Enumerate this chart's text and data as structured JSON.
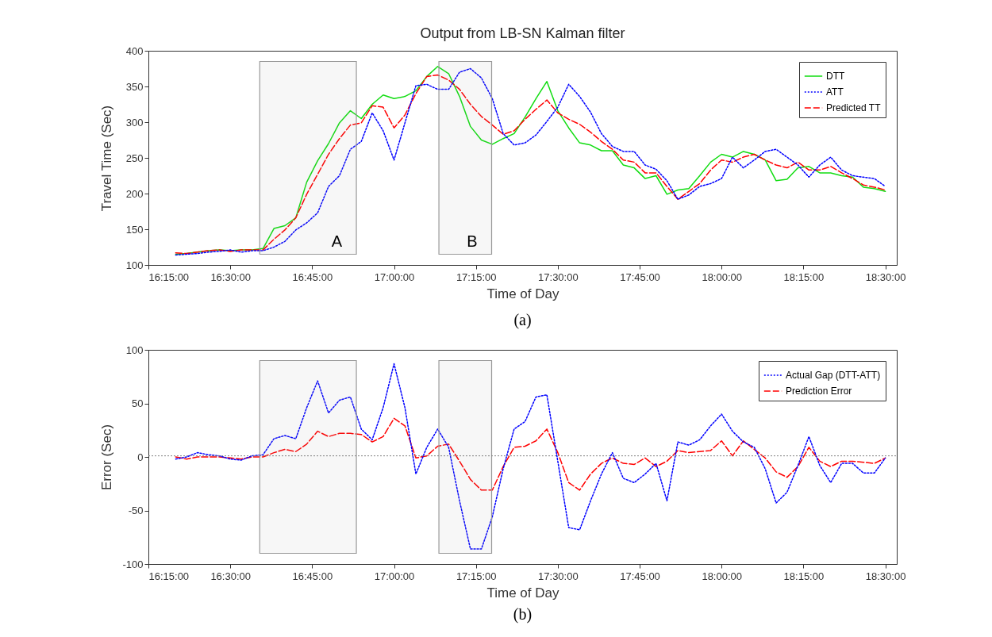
{
  "chart_data": [
    {
      "type": "line",
      "title": "Output from LB-SN Kalman filter",
      "xlabel": "Time of Day",
      "ylabel": "Travel Time (Sec)",
      "annotations": [
        "(a)"
      ],
      "xlim": [
        16.25,
        18.535
      ],
      "ylim": [
        100,
        400
      ],
      "xticks": [
        {
          "value": 16.25,
          "label": "16:15:00"
        },
        {
          "value": 16.5,
          "label": "16:30:00"
        },
        {
          "value": 16.75,
          "label": "16:45:00"
        },
        {
          "value": 17,
          "label": "17:00:00"
        },
        {
          "value": 17.25,
          "label": "17:15:00"
        },
        {
          "value": 17.5,
          "label": "17:30:00"
        },
        {
          "value": 17.75,
          "label": "17:45:00"
        },
        {
          "value": 18,
          "label": "18:00:00"
        },
        {
          "value": 18.25,
          "label": "18:15:00"
        },
        {
          "value": 18.5,
          "label": "18:30:00"
        }
      ],
      "yticks": [
        100,
        150,
        200,
        250,
        300,
        350,
        400
      ],
      "x": [
        16.3333,
        16.3667,
        16.4,
        16.4333,
        16.4667,
        16.5,
        16.5333,
        16.5667,
        16.6,
        16.6333,
        16.6667,
        16.7,
        16.7333,
        16.7667,
        16.8,
        16.8333,
        16.8667,
        16.9,
        16.9333,
        16.9667,
        17,
        17.0333,
        17.0667,
        17.1,
        17.1333,
        17.1667,
        17.2,
        17.2333,
        17.2667,
        17.3,
        17.3333,
        17.3667,
        17.4,
        17.4333,
        17.4667,
        17.5,
        17.5333,
        17.5667,
        17.6,
        17.6333,
        17.6667,
        17.7,
        17.7333,
        17.7667,
        17.8,
        17.8333,
        17.8667,
        17.9,
        17.9333,
        17.9667,
        18,
        18.0333,
        18.0667,
        18.1,
        18.1333,
        18.1667,
        18.2,
        18.2333,
        18.2667,
        18.3,
        18.3333,
        18.3667,
        18.4,
        18.4333,
        18.4667,
        18.5
      ],
      "series": [
        {
          "name": "DTT",
          "color": "#11dd11",
          "line_style": "solid",
          "values": [
            115,
            116,
            118,
            120,
            121,
            120,
            121,
            121,
            123,
            151,
            155,
            166,
            216,
            246,
            270,
            299,
            316,
            305,
            325,
            338,
            333,
            336,
            344,
            364,
            378,
            368,
            336,
            294,
            275,
            269,
            277,
            284,
            307,
            333,
            357,
            316,
            292,
            271,
            268,
            260,
            260,
            240,
            236,
            221,
            225,
            199,
            205,
            207,
            225,
            244,
            255,
            251,
            259,
            255,
            247,
            218,
            220,
            236,
            238,
            229,
            229,
            225,
            223,
            209,
            207,
            203
          ]
        },
        {
          "name": "ATT",
          "color": "#0000ff",
          "line_style": "dotted",
          "values": [
            114,
            115,
            116,
            118,
            119,
            121,
            118,
            120,
            120,
            125,
            133,
            149,
            159,
            173,
            210,
            225,
            262,
            273,
            313,
            288,
            247,
            299,
            351,
            353,
            346,
            346,
            370,
            375,
            362,
            333,
            284,
            268,
            271,
            282,
            301,
            321,
            353,
            336,
            314,
            284,
            266,
            259,
            259,
            240,
            234,
            218,
            192,
            198,
            210,
            214,
            221,
            251,
            236,
            247,
            259,
            262,
            251,
            240,
            223,
            240,
            251,
            233,
            225,
            223,
            221,
            210
          ]
        },
        {
          "name": "Predicted TT",
          "color": "#ff0000",
          "line_style": "dashed",
          "values": [
            117,
            116,
            118,
            120,
            121,
            119,
            121,
            121,
            121,
            136,
            149,
            166,
            199,
            227,
            255,
            277,
            296,
            299,
            323,
            321,
            292,
            310,
            340,
            364,
            366,
            359,
            346,
            325,
            308,
            296,
            283,
            288,
            304,
            318,
            331,
            313,
            304,
            297,
            286,
            273,
            262,
            247,
            244,
            229,
            229,
            210,
            192,
            203,
            214,
            233,
            247,
            244,
            251,
            255,
            247,
            240,
            236,
            244,
            233,
            233,
            238,
            229,
            221,
            212,
            209,
            205
          ]
        }
      ],
      "bands": [
        {
          "axis": "x",
          "from": 16.59,
          "to": 16.885,
          "label": "A",
          "color": "#999999"
        },
        {
          "axis": "x",
          "from": 17.137,
          "to": 17.298,
          "label": "B",
          "color": "#999999"
        }
      ],
      "legend": "top right"
    },
    {
      "type": "line",
      "xlabel": "Time of Day",
      "ylabel": "Error (Sec)",
      "annotations": [
        "(b)"
      ],
      "xlim": [
        16.25,
        18.535
      ],
      "ylim": [
        -100,
        100
      ],
      "xticks": [
        {
          "value": 16.25,
          "label": "16:15:00"
        },
        {
          "value": 16.5,
          "label": "16:30:00"
        },
        {
          "value": 16.75,
          "label": "16:45:00"
        },
        {
          "value": 17,
          "label": "17:00:00"
        },
        {
          "value": 17.25,
          "label": "17:15:00"
        },
        {
          "value": 17.5,
          "label": "17:30:00"
        },
        {
          "value": 17.75,
          "label": "17:45:00"
        },
        {
          "value": 18,
          "label": "18:00:00"
        },
        {
          "value": 18.25,
          "label": "18:15:00"
        },
        {
          "value": 18.5,
          "label": "18:30:00"
        }
      ],
      "yticks": [
        -100,
        -50,
        0,
        50,
        100
      ],
      "x": [
        16.3333,
        16.3667,
        16.4,
        16.4333,
        16.4667,
        16.5,
        16.5333,
        16.5667,
        16.6,
        16.6333,
        16.6667,
        16.7,
        16.7333,
        16.7667,
        16.8,
        16.8333,
        16.8667,
        16.9,
        16.9333,
        16.9667,
        17,
        17.0333,
        17.0667,
        17.1,
        17.1333,
        17.1667,
        17.2,
        17.2333,
        17.2667,
        17.3,
        17.3333,
        17.3667,
        17.4,
        17.4333,
        17.4667,
        17.5,
        17.5333,
        17.5667,
        17.6,
        17.6333,
        17.6667,
        17.7,
        17.7333,
        17.7667,
        17.8,
        17.8333,
        17.8667,
        17.9,
        17.9333,
        17.9667,
        18,
        18.0333,
        18.0667,
        18.1,
        18.1333,
        18.1667,
        18.2,
        18.2333,
        18.2667,
        18.3,
        18.3333,
        18.3667,
        18.4,
        18.4333,
        18.4667,
        18.5
      ],
      "series": [
        {
          "name": "Actual Gap (DTT-ATT)",
          "color": "#0000ff",
          "line_style": "dotted",
          "values": [
            -2,
            0,
            4,
            2,
            1,
            -2,
            -3,
            1,
            2,
            17,
            20,
            17,
            46,
            71,
            41,
            53,
            56,
            26,
            16,
            46,
            87,
            46,
            -16,
            9,
            26,
            9,
            -41,
            -86,
            -86,
            -56,
            -11,
            26,
            33,
            56,
            58,
            -4,
            -66,
            -68,
            -41,
            -16,
            4,
            -20,
            -24,
            -16,
            -6,
            -41,
            14,
            11,
            16,
            29,
            40,
            24,
            14,
            9,
            -11,
            -43,
            -33,
            -8,
            19,
            -8,
            -24,
            -6,
            -6,
            -15,
            -15,
            -1
          ]
        },
        {
          "name": "Prediction Error",
          "color": "#ff0000",
          "line_style": "dashed",
          "values": [
            0,
            -2,
            0,
            0,
            0,
            -1,
            -2,
            0,
            0,
            4,
            7,
            5,
            12,
            24,
            19,
            22,
            22,
            21,
            14,
            19,
            36,
            29,
            -1,
            1,
            10,
            12,
            -4,
            -21,
            -31,
            -31,
            -9,
            9,
            10,
            15,
            26,
            4,
            -24,
            -31,
            -16,
            -6,
            -1,
            -6,
            -7,
            -1,
            -9,
            -4,
            6,
            4,
            5,
            6,
            15,
            1,
            15,
            7,
            -1,
            -14,
            -19,
            -9,
            9,
            -4,
            -9,
            -4,
            -4,
            -5,
            -6,
            -1
          ]
        }
      ],
      "ref_lines": [
        {
          "axis": "y",
          "value": 1,
          "color": "#808080",
          "line_style": "dotted"
        }
      ],
      "bands": [
        {
          "axis": "x",
          "from": 16.59,
          "to": 16.885,
          "color": "#999999"
        },
        {
          "axis": "x",
          "from": 17.137,
          "to": 17.298,
          "color": "#999999"
        }
      ],
      "legend": "top right"
    }
  ]
}
